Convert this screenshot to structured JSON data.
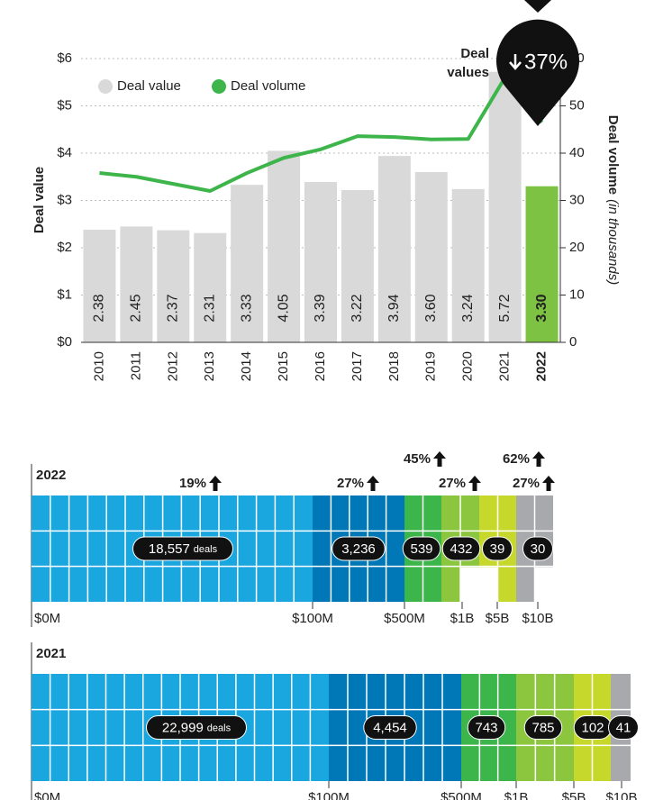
{
  "chart_data": {
    "type": "bar_line",
    "legend": "upper left",
    "categories": [
      "2010",
      "2011",
      "2012",
      "2013",
      "2014",
      "2015",
      "2016",
      "2017",
      "2018",
      "2019",
      "2020",
      "2021",
      "2022"
    ],
    "highlight": "2022",
    "highlight_color": "#7dc242",
    "series": [
      {
        "name": "Deal value",
        "type": "bar",
        "color": "#d9d9d9",
        "values": [
          2.38,
          2.45,
          2.37,
          2.31,
          3.33,
          4.05,
          3.39,
          3.22,
          3.94,
          3.6,
          3.24,
          5.72,
          3.3
        ],
        "value_labels": [
          "2.38",
          "2.45",
          "2.37",
          "2.31",
          "3.33",
          "4.05",
          "3.39",
          "3.22",
          "3.94",
          "3.60",
          "3.24",
          "5.72",
          "3.30"
        ]
      },
      {
        "name": "Deal volume",
        "type": "line",
        "axis": "y2",
        "color": "#3db54a",
        "values": [
          35.8,
          35,
          33.5,
          32,
          35.8,
          39,
          40.8,
          43.6,
          43.4,
          42.9,
          43,
          56,
          46.5
        ]
      }
    ],
    "ylabel": "Deal value",
    "y2label": "Deal volume",
    "y2label_note": "(in thousands)",
    "ylim": [
      0,
      6
    ],
    "yticks": [
      {
        "value": 0,
        "label": "$0"
      },
      {
        "value": 1,
        "label": "$1"
      },
      {
        "value": 2,
        "label": "$2"
      },
      {
        "value": 3,
        "label": "$3"
      },
      {
        "value": 4,
        "label": "$4"
      },
      {
        "value": 5,
        "label": "$5"
      },
      {
        "value": 6,
        "label": "$6"
      }
    ],
    "y2lim": [
      0,
      60
    ],
    "y2ticks": [
      0,
      10,
      20,
      30,
      40,
      50,
      60
    ],
    "grid": true,
    "annotation": {
      "lines": [
        "Deal",
        "values"
      ],
      "change": "37%"
    }
  },
  "size_bands": {
    "unit": "deals",
    "axis_labels": [
      "$0M",
      "$100M",
      "$500M",
      "$1B",
      "$5B",
      "$10B"
    ],
    "colors": [
      "#1aa7e0",
      "#0077b6",
      "#3cb54a",
      "#8cc63f",
      "#c7d82c",
      "#a7a9ac"
    ],
    "rows": [
      {
        "year": "2022",
        "counts": [
          "18,557",
          "3,236",
          "539",
          "432",
          "39",
          "30"
        ],
        "changes": [
          "19%",
          "27%",
          "45%",
          "27%",
          "62%",
          "27%"
        ]
      },
      {
        "year": "2021",
        "counts": [
          "22,999",
          "4,454",
          "743",
          "785",
          "102",
          "41"
        ]
      }
    ]
  }
}
